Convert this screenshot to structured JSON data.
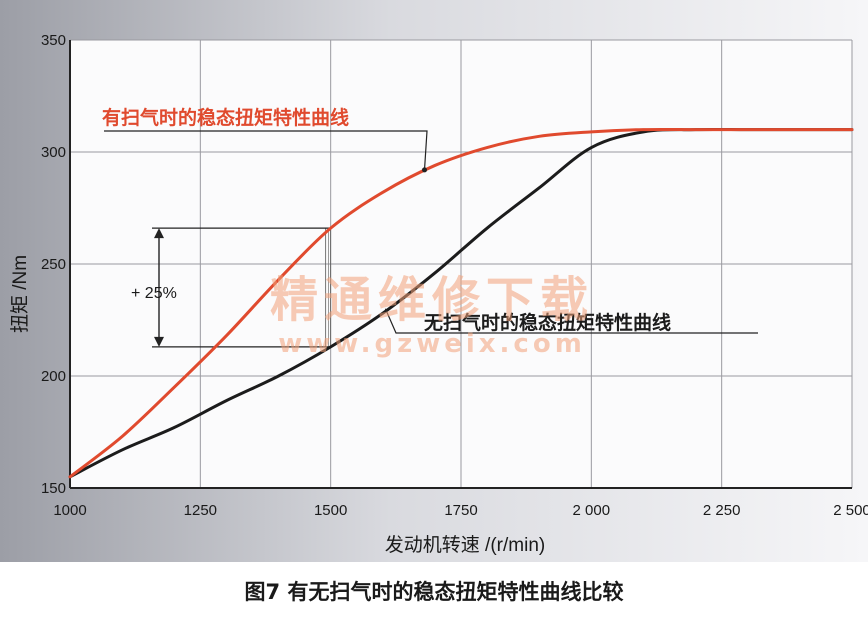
{
  "chart_data": {
    "type": "line",
    "xlabel": "发动机转速 /(r/min)",
    "ylabel": "扭矩 /Nm",
    "xlim": [
      1000,
      2500
    ],
    "ylim": [
      150,
      350
    ],
    "x_ticks": [
      1000,
      1250,
      1500,
      1750,
      2000,
      2250,
      2500
    ],
    "x_tick_labels": [
      "1000",
      "1250",
      "1500",
      "1750",
      "2 000",
      "2 250",
      "2 500"
    ],
    "y_ticks": [
      150,
      200,
      250,
      300,
      350
    ],
    "y_tick_labels": [
      "150",
      "200",
      "250",
      "300",
      "350"
    ],
    "grid": true,
    "series": [
      {
        "name": "有扫气时的稳态扭矩特性曲线",
        "color": "#e04a2e",
        "x": [
          1000,
          1100,
          1200,
          1300,
          1400,
          1500,
          1600,
          1700,
          1800,
          1900,
          2000,
          2100,
          2200,
          2300,
          2400,
          2500
        ],
        "y": [
          155,
          173,
          195,
          218,
          243,
          266,
          282,
          294,
          302,
          307,
          309,
          310,
          310,
          310,
          310,
          310
        ]
      },
      {
        "name": "无扫气时的稳态扭矩特性曲线",
        "color": "#1c1c1c",
        "x": [
          1000,
          1100,
          1200,
          1300,
          1400,
          1500,
          1600,
          1700,
          1800,
          1900,
          2000,
          2100,
          2200,
          2300,
          2400,
          2500
        ],
        "y": [
          155,
          167,
          177,
          189,
          200,
          213,
          228,
          246,
          266,
          284,
          302,
          309,
          310,
          310,
          310,
          310
        ]
      }
    ],
    "annotation": {
      "label": "+ 25%",
      "x": 1500,
      "y_low": 213,
      "y_high": 266
    }
  },
  "watermark": {
    "line1": "精通维修下载",
    "line2": "www.gzweix.com"
  },
  "caption": "图7 有无扫气时的稳态扭矩特性曲线比较"
}
